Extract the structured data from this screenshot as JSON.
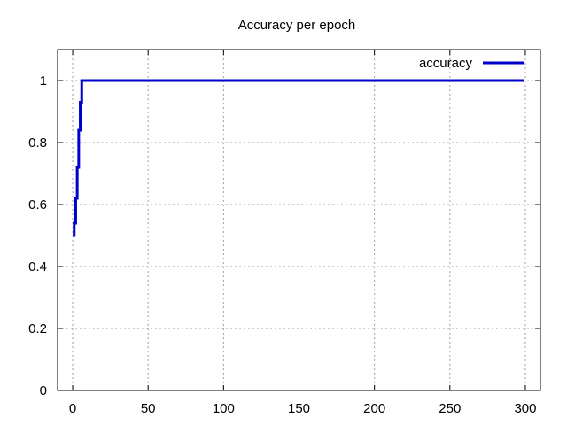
{
  "chart_data": {
    "type": "line",
    "title": "Accuracy per epoch",
    "xlabel": "",
    "ylabel": "",
    "xlim": [
      -10,
      310
    ],
    "ylim": [
      0,
      1.1
    ],
    "xticks": [
      0,
      50,
      100,
      150,
      200,
      250,
      300
    ],
    "yticks": [
      0,
      0.2,
      0.4,
      0.6,
      0.8,
      1
    ],
    "xtick_labels": [
      "0",
      "50",
      "100",
      "150",
      "200",
      "250",
      "300"
    ],
    "ytick_labels": [
      "0",
      "0.2",
      "0.4",
      "0.6",
      "0.8",
      "1"
    ],
    "grid": true,
    "legend": "top-right",
    "series": [
      {
        "name": "accuracy",
        "color": "#0000cc",
        "x": [
          0,
          1,
          2,
          3,
          4,
          5,
          6,
          299
        ],
        "y": [
          0.5,
          0.54,
          0.62,
          0.72,
          0.84,
          0.93,
          1.0,
          1.0
        ]
      }
    ]
  }
}
